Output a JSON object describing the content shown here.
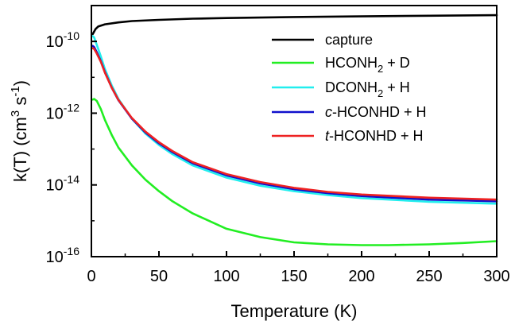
{
  "chart_data": {
    "type": "line",
    "xlabel": "Temperature (K)",
    "ylabel_parts": [
      "k(T) (cm",
      "3",
      " s",
      "-1",
      ")"
    ],
    "xlim": [
      0,
      300
    ],
    "ylim": [
      1e-16,
      1e-09
    ],
    "y_scale": "log",
    "grid": false,
    "legend_position": "top-right",
    "x_ticks": [
      0,
      50,
      100,
      150,
      200,
      250,
      300
    ],
    "x_tick_labels": [
      "0",
      "50",
      "100",
      "150",
      "200",
      "250",
      "300"
    ],
    "y_ticks": [
      {
        "value": 1e-10,
        "base": "10",
        "exp": "-10"
      },
      {
        "value": 1e-12,
        "base": "10",
        "exp": "-12"
      },
      {
        "value": 1e-14,
        "base": "10",
        "exp": "-14"
      },
      {
        "value": 1e-16,
        "base": "10",
        "exp": "-16"
      }
    ],
    "series": [
      {
        "name": "capture",
        "legend_parts": [
          {
            "t": "capture"
          }
        ],
        "color": "#000000",
        "x": [
          1,
          3,
          5,
          10,
          20,
          30,
          50,
          75,
          100,
          150,
          200,
          250,
          300
        ],
        "y": [
          1.6e-10,
          2.2e-10,
          2.6e-10,
          3e-10,
          3.4e-10,
          3.7e-10,
          4e-10,
          4.3e-10,
          4.5e-10,
          4.8e-10,
          5e-10,
          5.2e-10,
          5.4e-10
        ]
      },
      {
        "name": "HCONH2 + D",
        "legend_parts": [
          {
            "t": "HCONH"
          },
          {
            "t": "2",
            "sub": true
          },
          {
            "t": " + D"
          }
        ],
        "color": "#22ee22",
        "x": [
          1,
          2,
          4,
          7,
          10,
          15,
          20,
          30,
          40,
          50,
          60,
          75,
          100,
          125,
          150,
          175,
          200,
          220,
          250,
          275,
          300
        ],
        "y": [
          2.4e-12,
          2.5e-12,
          2.2e-12,
          1.3e-12,
          6.5e-13,
          2.5e-13,
          1.1e-13,
          3.5e-14,
          1.4e-14,
          6.7e-15,
          3.5e-15,
          1.6e-15,
          6e-16,
          3.5e-16,
          2.5e-16,
          2.2e-16,
          2.1e-16,
          2.1e-16,
          2.2e-16,
          2.4e-16,
          2.7e-16
        ]
      },
      {
        "name": "DCONH2 + H",
        "legend_parts": [
          {
            "t": "DCONH"
          },
          {
            "t": "2",
            "sub": true
          },
          {
            "t": " + H"
          }
        ],
        "color": "#22eeee",
        "x": [
          1,
          2,
          4,
          7,
          10,
          15,
          20,
          30,
          40,
          50,
          60,
          75,
          100,
          125,
          150,
          175,
          200,
          250,
          300
        ],
        "y": [
          1.4e-10,
          1.3e-10,
          8e-11,
          3.8e-11,
          1.7e-11,
          6e-12,
          2.5e-12,
          7e-13,
          2.7e-13,
          1.3e-13,
          7.2e-14,
          3.5e-14,
          1.6e-14,
          9.5e-15,
          6.7e-15,
          5.2e-15,
          4.3e-15,
          3.4e-15,
          3e-15
        ]
      },
      {
        "name": "c-HCONHD + H",
        "legend_parts": [
          {
            "t": "c",
            "italic": true
          },
          {
            "t": "-HCONHD + H"
          }
        ],
        "color": "#1010cc",
        "x": [
          1,
          2,
          4,
          7,
          10,
          15,
          20,
          30,
          40,
          50,
          60,
          75,
          100,
          125,
          150,
          175,
          200,
          250,
          300
        ],
        "y": [
          7.5e-11,
          7e-11,
          5e-11,
          2.8e-11,
          1.4e-11,
          5.2e-12,
          2.3e-12,
          7e-13,
          2.9e-13,
          1.45e-13,
          8.2e-14,
          4e-14,
          1.85e-14,
          1.1e-14,
          7.6e-15,
          5.9e-15,
          4.9e-15,
          3.9e-15,
          3.5e-15
        ]
      },
      {
        "name": "t-HCONHD + H",
        "legend_parts": [
          {
            "t": "t",
            "italic": true
          },
          {
            "t": "-HCONHD + H"
          }
        ],
        "color": "#ee2222",
        "x": [
          1,
          2,
          4,
          7,
          10,
          15,
          20,
          30,
          40,
          50,
          60,
          75,
          100,
          125,
          150,
          175,
          200,
          250,
          300
        ],
        "y": [
          6.5e-11,
          6.2e-11,
          4.6e-11,
          2.7e-11,
          1.35e-11,
          5.2e-12,
          2.35e-12,
          7.3e-13,
          3.05e-13,
          1.55e-13,
          8.8e-14,
          4.3e-14,
          2e-14,
          1.2e-14,
          8.3e-15,
          6.4e-15,
          5.4e-15,
          4.4e-15,
          3.9e-15
        ]
      }
    ]
  }
}
